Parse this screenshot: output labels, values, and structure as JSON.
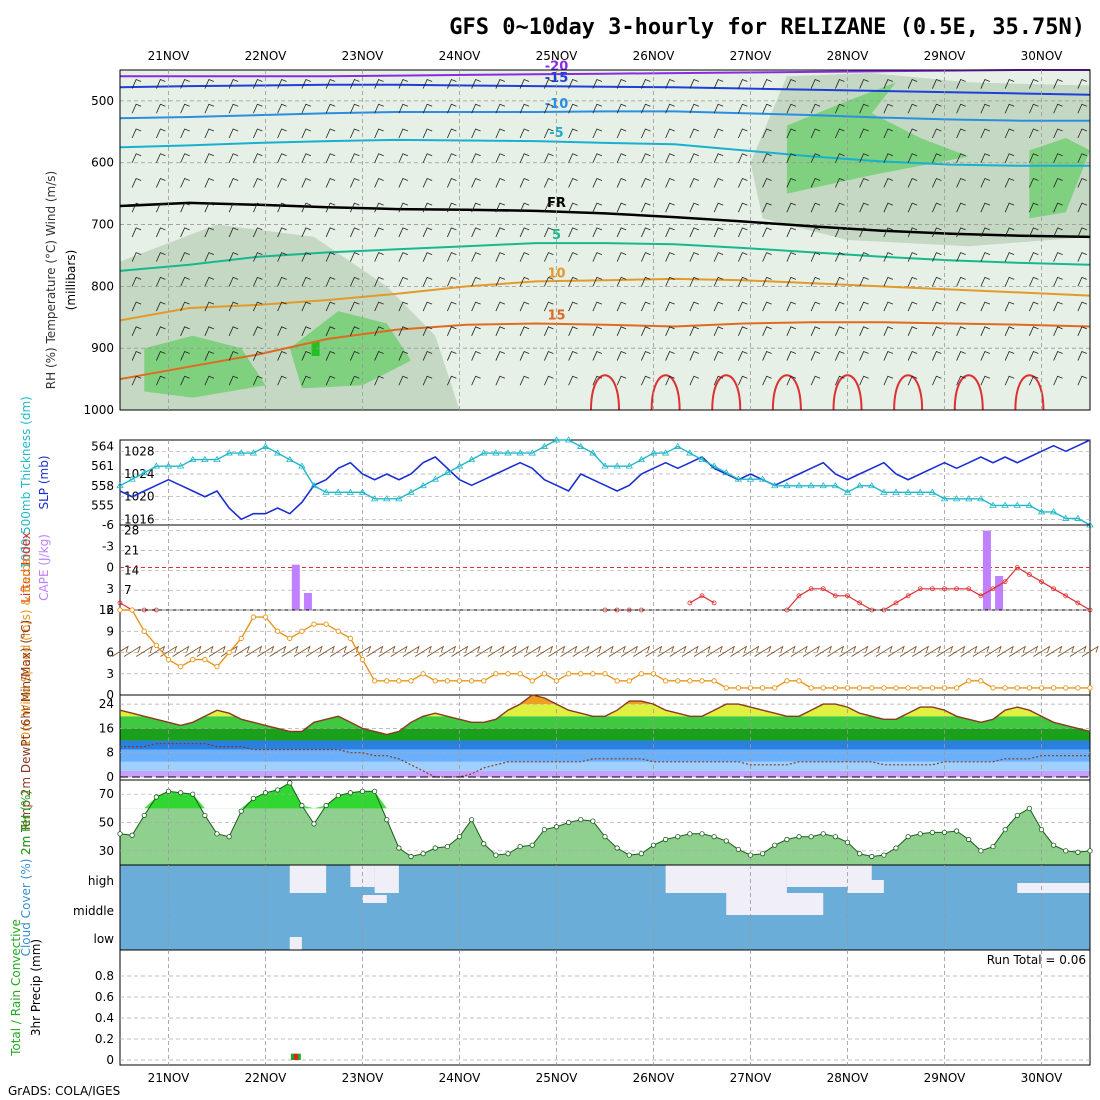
{
  "title": "GFS 0~10day 3-hourly for RELIZANE (0.5E, 35.75N)",
  "footer": "GrADS: COLA/IGES",
  "days": [
    "21NOV",
    "22NOV",
    "23NOV",
    "24NOV",
    "25NOV",
    "26NOV",
    "27NOV",
    "28NOV",
    "29NOV",
    "30NOV"
  ],
  "colors": {
    "rh_light": "#e6f0e6",
    "rh_mid": "#c4d8c4",
    "rh_dark": "#7fd07f",
    "rh_bright": "#22c022",
    "slp": "#1a2fd0",
    "thick": "#22b8c8",
    "cape": "#c080ff",
    "li": "#dd3030",
    "wind": "#e8951a",
    "barb": "#7a4a20",
    "rh2m": "#18d818",
    "cloud": "#6aadd8",
    "precip_conv": "#dd2222",
    "precip_total": "#22aa22"
  },
  "chart_data": [
    {
      "id": "upper_air",
      "type": "heatmap",
      "ylabel_parts": [
        "RH (%)",
        "Temperature (°C)",
        "Wind (m/s)"
      ],
      "ylabel_units": "(millibars)",
      "y_ticks": [
        "500",
        "600",
        "700",
        "800",
        "900",
        "1000"
      ],
      "ylim": [
        1000,
        450
      ],
      "contours": [
        {
          "label": "-20",
          "color": "#8a2be2",
          "values": [
            460,
            460,
            460,
            460,
            459,
            458,
            457,
            456,
            455,
            454,
            453,
            452,
            451,
            450,
            450
          ]
        },
        {
          "label": "-15",
          "color": "#1e40d8",
          "values": [
            478,
            476,
            475,
            474,
            474,
            475,
            476,
            477,
            478,
            480,
            482,
            484,
            486,
            488,
            490
          ]
        },
        {
          "label": "-10",
          "color": "#2a8fe0",
          "values": [
            528,
            526,
            523,
            520,
            518,
            518,
            518,
            517,
            517,
            520,
            523,
            527,
            530,
            532,
            532
          ]
        },
        {
          "label": "-5",
          "color": "#19b0d0",
          "values": [
            575,
            572,
            568,
            565,
            563,
            564,
            565,
            568,
            570,
            580,
            590,
            598,
            603,
            605,
            605
          ]
        },
        {
          "label": "FR",
          "color": "#000000",
          "values": [
            670,
            665,
            668,
            672,
            675,
            676,
            678,
            682,
            688,
            695,
            703,
            710,
            715,
            718,
            720
          ]
        },
        {
          "label": "5",
          "color": "#17b890",
          "values": [
            775,
            765,
            752,
            745,
            740,
            735,
            730,
            730,
            732,
            738,
            745,
            752,
            758,
            762,
            765
          ]
        },
        {
          "label": "10",
          "color": "#e39a2a",
          "values": [
            855,
            835,
            830,
            822,
            812,
            800,
            792,
            790,
            788,
            790,
            795,
            800,
            805,
            810,
            815
          ]
        },
        {
          "label": "15",
          "color": "#e06a20",
          "values": [
            950,
            930,
            910,
            885,
            870,
            862,
            860,
            862,
            865,
            860,
            858,
            858,
            860,
            862,
            865
          ]
        }
      ]
    },
    {
      "id": "slp_thickness",
      "type": "line",
      "ylabel_left": "1000-500mb Thickness (dm)",
      "ylabel_right": "SLP (mb)",
      "left_ticks": [
        "564",
        "561",
        "558",
        "555"
      ],
      "right_ticks": [
        "1028",
        "1024",
        "1020",
        "1016"
      ],
      "series": [
        {
          "name": "SLP (mb)",
          "values": [
            1021,
            1020,
            1021,
            1022,
            1023,
            1022,
            1021,
            1020,
            1021,
            1018,
            1016,
            1017,
            1017,
            1018,
            1017,
            1019,
            1022,
            1023,
            1025,
            1026,
            1024,
            1023,
            1024,
            1023,
            1024,
            1026,
            1027,
            1025,
            1023,
            1022,
            1023,
            1024,
            1025,
            1026,
            1025,
            1023,
            1022,
            1021,
            1024,
            1023,
            1022,
            1021,
            1022,
            1024,
            1025,
            1026,
            1025,
            1026,
            1027,
            1025,
            1024,
            1023,
            1024,
            1023,
            1022,
            1023,
            1024,
            1025,
            1026,
            1024,
            1023,
            1024,
            1025,
            1026,
            1024,
            1023,
            1024,
            1025,
            1026,
            1025,
            1026,
            1027,
            1026,
            1027,
            1026,
            1027,
            1028,
            1029,
            1028,
            1029,
            1030
          ]
        },
        {
          "name": "Thickness (dm)",
          "values": [
            558,
            559,
            560,
            561,
            561,
            561,
            562,
            562,
            562,
            563,
            563,
            563,
            564,
            563,
            562,
            561,
            558,
            557,
            557,
            557,
            557,
            556,
            556,
            556,
            557,
            558,
            559,
            560,
            561,
            562,
            563,
            563,
            563,
            563,
            563,
            564,
            565,
            565,
            564,
            563,
            561,
            561,
            561,
            562,
            563,
            563,
            564,
            563,
            562,
            561,
            560,
            559,
            559,
            559,
            558,
            558,
            558,
            558,
            558,
            558,
            557,
            558,
            558,
            557,
            557,
            557,
            557,
            557,
            556,
            556,
            556,
            556,
            555,
            555,
            555,
            555,
            554,
            554,
            553,
            553,
            552
          ]
        }
      ]
    },
    {
      "id": "li_cape",
      "type": "bar",
      "ylabel_left": "Lifted Index",
      "ylabel_right": "CAPE (J/kg)",
      "left_ticks": [
        "-6",
        "-3",
        "0",
        "3",
        "6"
      ],
      "right_ticks": [
        "28",
        "21",
        "14",
        "7"
      ],
      "cape_bars": [
        {
          "x": 14.5,
          "value": 16
        },
        {
          "x": 15.5,
          "value": 6
        },
        {
          "x": 71.5,
          "value": 28
        },
        {
          "x": 72.5,
          "value": 12
        }
      ],
      "li_points": [
        [
          0,
          5
        ],
        [
          1,
          6
        ],
        [
          2,
          6
        ],
        [
          3,
          6
        ],
        [
          40,
          6
        ],
        [
          41,
          6
        ],
        [
          42,
          6
        ],
        [
          43,
          6
        ],
        [
          47,
          5
        ],
        [
          48,
          4
        ],
        [
          49,
          5
        ],
        [
          55,
          6
        ],
        [
          56,
          4
        ],
        [
          57,
          3
        ],
        [
          58,
          3
        ],
        [
          59,
          4
        ],
        [
          60,
          4
        ],
        [
          61,
          5
        ],
        [
          62,
          6
        ],
        [
          63,
          6
        ],
        [
          64,
          5
        ],
        [
          65,
          4
        ],
        [
          66,
          3
        ],
        [
          67,
          3
        ],
        [
          68,
          3
        ],
        [
          69,
          3
        ],
        [
          70,
          3
        ],
        [
          71,
          4
        ],
        [
          72,
          3
        ],
        [
          73,
          2
        ],
        [
          74,
          0
        ],
        [
          75,
          1
        ],
        [
          76,
          2
        ],
        [
          77,
          3
        ],
        [
          78,
          4
        ],
        [
          79,
          5
        ],
        [
          80,
          6
        ]
      ]
    },
    {
      "id": "wind10m",
      "type": "line",
      "ylabel": "10m Wind Speed (m/s) & Barbs",
      "ylim": [
        0,
        12
      ],
      "y_ticks": [
        "12",
        "9",
        "6",
        "3",
        "0"
      ],
      "series": [
        {
          "name": "Speed (m/s)",
          "values": [
            12,
            12,
            9,
            7,
            5,
            4,
            5,
            5,
            4,
            6,
            8,
            11,
            11,
            9,
            8,
            9,
            10,
            10,
            9,
            8,
            5,
            2,
            2,
            2,
            2,
            3,
            2,
            2,
            2,
            2,
            2,
            3,
            3,
            3,
            2,
            3,
            2,
            3,
            3,
            3,
            3,
            2,
            2,
            3,
            3,
            2,
            2,
            2,
            2,
            2,
            1,
            1,
            1,
            1,
            1,
            2,
            2,
            1,
            1,
            1,
            1,
            1,
            1,
            1,
            1,
            1,
            1,
            1,
            1,
            1,
            2,
            2,
            1,
            1,
            1,
            1,
            1,
            1,
            1,
            1,
            1
          ]
        }
      ]
    },
    {
      "id": "temp_dewpt",
      "type": "area",
      "ylabel": "2m Temp 2m DewPt (6hr Min/Max) (°C)",
      "ylim": [
        0,
        24
      ],
      "y_ticks": [
        "24",
        "16",
        "8",
        "0"
      ],
      "series": [
        {
          "name": "2m Temp",
          "values": [
            22,
            21,
            20,
            19,
            18,
            17,
            18,
            20,
            22,
            21,
            19,
            18,
            17,
            16,
            15,
            15,
            18,
            19,
            20,
            18,
            16,
            15,
            14,
            15,
            18,
            20,
            21,
            20,
            19,
            18,
            18,
            19,
            22,
            24,
            27,
            26,
            24,
            22,
            21,
            20,
            20,
            22,
            25,
            25,
            24,
            22,
            21,
            20,
            20,
            22,
            24,
            24,
            23,
            22,
            21,
            20,
            20,
            22,
            24,
            24,
            23,
            21,
            20,
            19,
            19,
            21,
            23,
            23,
            22,
            20,
            19,
            18,
            19,
            22,
            23,
            22,
            20,
            18,
            17,
            16,
            15
          ]
        },
        {
          "name": "2m DewPt",
          "values": [
            10,
            10,
            10,
            11,
            11,
            11,
            11,
            11,
            10,
            10,
            10,
            9,
            9,
            9,
            9,
            9,
            9,
            9,
            9,
            8,
            8,
            7,
            7,
            6,
            4,
            2,
            0,
            0,
            0,
            1,
            3,
            4,
            5,
            5,
            5,
            5,
            5,
            5,
            5,
            6,
            6,
            6,
            6,
            6,
            5,
            5,
            5,
            5,
            5,
            5,
            5,
            5,
            4,
            4,
            4,
            4,
            5,
            5,
            5,
            5,
            5,
            5,
            5,
            4,
            4,
            4,
            4,
            4,
            5,
            5,
            5,
            5,
            5,
            6,
            6,
            6,
            7,
            7,
            7,
            7,
            7
          ]
        }
      ]
    },
    {
      "id": "rh2m",
      "type": "area",
      "ylabel": "2m RH (%)",
      "ylim": [
        20,
        80
      ],
      "y_ticks": [
        "70",
        "50",
        "30"
      ],
      "series": [
        {
          "name": "2m RH",
          "values": [
            42,
            41,
            55,
            68,
            72,
            71,
            70,
            55,
            42,
            40,
            58,
            67,
            71,
            73,
            78,
            62,
            49,
            62,
            69,
            71,
            72,
            72,
            52,
            32,
            26,
            28,
            32,
            33,
            40,
            52,
            35,
            27,
            28,
            33,
            34,
            45,
            47,
            50,
            52,
            51,
            40,
            32,
            27,
            28,
            34,
            38,
            40,
            42,
            42,
            40,
            37,
            31,
            27,
            28,
            34,
            38,
            40,
            40,
            42,
            40,
            36,
            28,
            26,
            27,
            32,
            40,
            42,
            43,
            43,
            44,
            38,
            30,
            33,
            45,
            55,
            60,
            45,
            34,
            30,
            29,
            30
          ]
        }
      ]
    },
    {
      "id": "cloud",
      "type": "heatmap",
      "ylabel": "Cloud Cover (%)",
      "row_labels": [
        "high",
        "middle",
        "low"
      ]
    },
    {
      "id": "precip",
      "type": "bar",
      "ylabel_left": "Total / Rain Convective",
      "ylabel": "3hr Precip (mm)",
      "y_ticks": [
        "0.8",
        "0.6",
        "0.4",
        "0.2",
        "0"
      ],
      "ylim": [
        0,
        1
      ],
      "run_total": "Run Total = 0.06",
      "bars": [
        {
          "x": 14.5,
          "value": 0.06
        }
      ]
    }
  ]
}
